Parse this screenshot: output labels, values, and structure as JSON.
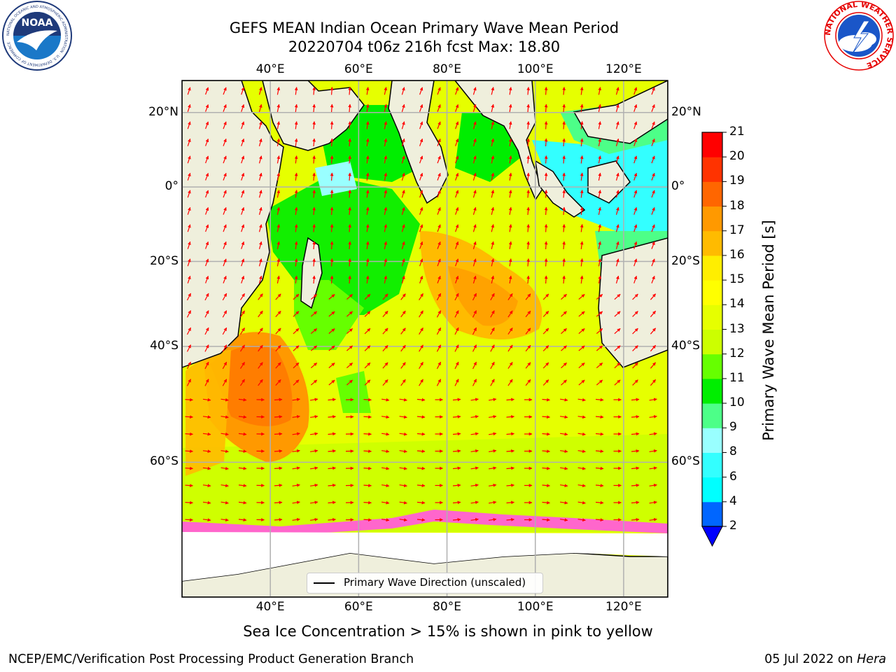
{
  "header": {
    "title_line1": "GEFS MEAN Indian Ocean Primary Wave Mean Period",
    "title_line2": "20220704 t06z 216h fcst   Max: 18.80"
  },
  "logos": {
    "left_name": "noaa-logo",
    "left_text": "NOAA",
    "left_ring_text": "NATIONAL OCEANIC AND ATMOSPHERIC ADMINISTRATION · U.S. DEPARTMENT OF COMMERCE",
    "right_name": "national-weather-service-logo",
    "right_ring_text": "NATIONAL WEATHER SERVICE"
  },
  "map": {
    "lon_range": [
      20,
      130
    ],
    "lat_range": [
      -74,
      28
    ],
    "lon_ticks": [
      {
        "value": 40,
        "label": "40°E"
      },
      {
        "value": 60,
        "label": "60°E"
      },
      {
        "value": 80,
        "label": "80°E"
      },
      {
        "value": 100,
        "label": "100°E"
      },
      {
        "value": 120,
        "label": "120°E"
      }
    ],
    "lat_ticks": [
      {
        "value": 20,
        "label": "20°N"
      },
      {
        "value": 0,
        "label": "0°"
      },
      {
        "value": -20,
        "label": "20°S"
      },
      {
        "value": -40,
        "label": "40°S"
      },
      {
        "value": -60,
        "label": "60°S"
      }
    ],
    "grid": true,
    "land_color": "#efefdc",
    "ocean_default_color": "#e6ff00",
    "arrow_color": "#ff0000"
  },
  "colorbar": {
    "title": "Primary Wave Mean Period [s]",
    "levels": [
      2,
      4,
      6,
      8,
      9,
      10,
      11,
      12,
      13,
      14,
      15,
      16,
      17,
      18,
      19,
      20,
      21
    ],
    "colors": [
      "#0066ff",
      "#00ffff",
      "#33ffff",
      "#99ffff",
      "#4dff88",
      "#00ee00",
      "#66ff00",
      "#ccff00",
      "#e6ff00",
      "#ffff00",
      "#ffee00",
      "#ffbb00",
      "#ff9900",
      "#ff6600",
      "#ff3300",
      "#ff0000"
    ],
    "under_color": "#0000ff",
    "orientation": "vertical",
    "position": "right"
  },
  "legend": {
    "label": "Primary Wave Direction (unscaled)",
    "placement": "bottom-center"
  },
  "subtitle": "Sea Ice Concentration > 15% is shown in pink to yellow",
  "footer": {
    "left": "NCEP/EMC/Verification Post Processing Product Generation Branch",
    "date": "05 Jul 2022 on ",
    "machine": "Hera"
  }
}
